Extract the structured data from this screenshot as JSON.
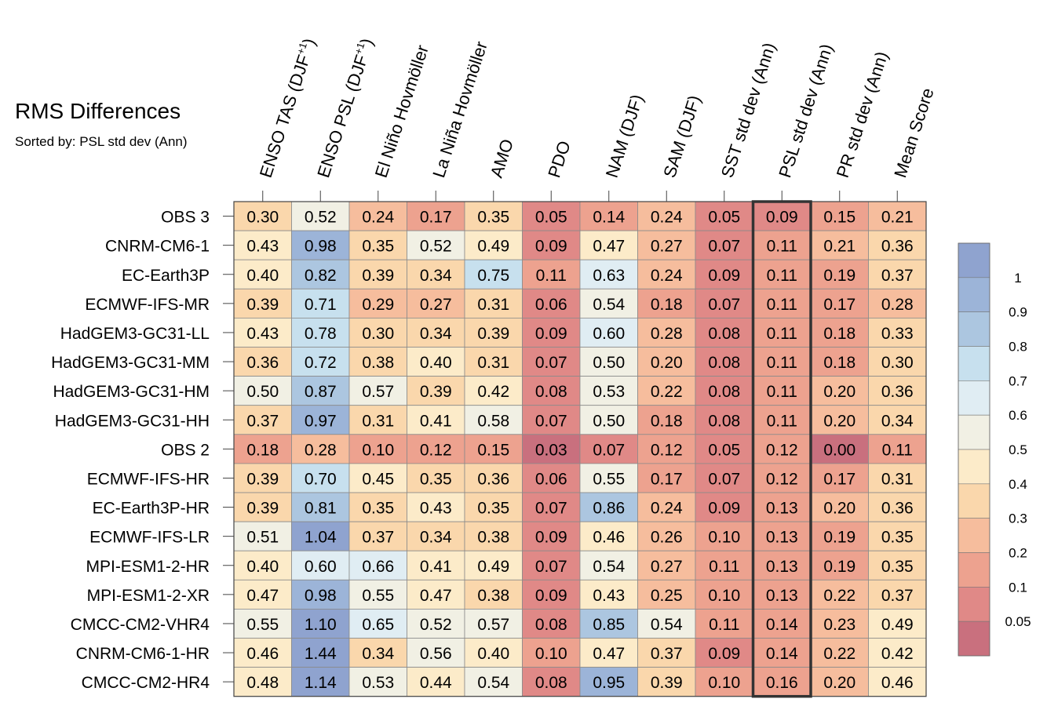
{
  "chart_data": {
    "type": "heatmap",
    "title": "RMS Differences",
    "subtitle": "Sorted by: PSL std dev (Ann)",
    "columns": [
      {
        "label": "ENSO TAS (DJF",
        "sup": "+1",
        "close": ")"
      },
      {
        "label": "ENSO PSL (DJF",
        "sup": "+1",
        "close": ")"
      },
      {
        "label": "El Niño Hovmöller",
        "sup": "",
        "close": ""
      },
      {
        "label": "La Niña Hovmöller",
        "sup": "",
        "close": ""
      },
      {
        "label": "AMO",
        "sup": "",
        "close": ""
      },
      {
        "label": "PDO",
        "sup": "",
        "close": ""
      },
      {
        "label": "NAM (DJF)",
        "sup": "",
        "close": ""
      },
      {
        "label": "SAM (DJF)",
        "sup": "",
        "close": ""
      },
      {
        "label": "SST std dev (Ann)",
        "sup": "",
        "close": ""
      },
      {
        "label": "PSL std dev (Ann)",
        "sup": "",
        "close": ""
      },
      {
        "label": "PR std dev (Ann)",
        "sup": "",
        "close": ""
      },
      {
        "label": "Mean Score",
        "sup": "",
        "close": ""
      }
    ],
    "rows": [
      "OBS 3",
      "CNRM-CM6-1",
      "EC-Earth3P",
      "ECMWF-IFS-MR",
      "HadGEM3-GC31-LL",
      "HadGEM3-GC31-MM",
      "HadGEM3-GC31-HM",
      "HadGEM3-GC31-HH",
      "OBS 2",
      "ECMWF-IFS-HR",
      "EC-Earth3P-HR",
      "ECMWF-IFS-LR",
      "MPI-ESM1-2-HR",
      "MPI-ESM1-2-XR",
      "CMCC-CM2-VHR4",
      "CNRM-CM6-1-HR",
      "CMCC-CM2-HR4"
    ],
    "values": [
      [
        "0.30",
        "0.52",
        "0.24",
        "0.17",
        "0.35",
        "0.05",
        "0.14",
        "0.24",
        "0.05",
        "0.09",
        "0.15",
        "0.21"
      ],
      [
        "0.43",
        "0.98",
        "0.35",
        "0.52",
        "0.49",
        "0.09",
        "0.47",
        "0.27",
        "0.07",
        "0.11",
        "0.21",
        "0.36"
      ],
      [
        "0.40",
        "0.82",
        "0.39",
        "0.34",
        "0.75",
        "0.11",
        "0.63",
        "0.24",
        "0.09",
        "0.11",
        "0.19",
        "0.37"
      ],
      [
        "0.39",
        "0.71",
        "0.29",
        "0.27",
        "0.31",
        "0.06",
        "0.54",
        "0.18",
        "0.07",
        "0.11",
        "0.17",
        "0.28"
      ],
      [
        "0.43",
        "0.78",
        "0.30",
        "0.34",
        "0.39",
        "0.09",
        "0.60",
        "0.28",
        "0.08",
        "0.11",
        "0.18",
        "0.33"
      ],
      [
        "0.36",
        "0.72",
        "0.38",
        "0.40",
        "0.31",
        "0.07",
        "0.50",
        "0.20",
        "0.08",
        "0.11",
        "0.18",
        "0.30"
      ],
      [
        "0.50",
        "0.87",
        "0.57",
        "0.39",
        "0.42",
        "0.08",
        "0.53",
        "0.22",
        "0.08",
        "0.11",
        "0.20",
        "0.36"
      ],
      [
        "0.37",
        "0.97",
        "0.31",
        "0.41",
        "0.58",
        "0.07",
        "0.50",
        "0.18",
        "0.08",
        "0.11",
        "0.20",
        "0.34"
      ],
      [
        "0.18",
        "0.28",
        "0.10",
        "0.12",
        "0.15",
        "0.03",
        "0.07",
        "0.12",
        "0.05",
        "0.12",
        "0.00",
        "0.11"
      ],
      [
        "0.39",
        "0.70",
        "0.45",
        "0.35",
        "0.36",
        "0.06",
        "0.55",
        "0.17",
        "0.07",
        "0.12",
        "0.17",
        "0.31"
      ],
      [
        "0.39",
        "0.81",
        "0.35",
        "0.43",
        "0.35",
        "0.07",
        "0.86",
        "0.24",
        "0.09",
        "0.13",
        "0.20",
        "0.36"
      ],
      [
        "0.51",
        "1.04",
        "0.37",
        "0.34",
        "0.38",
        "0.09",
        "0.46",
        "0.26",
        "0.10",
        "0.13",
        "0.19",
        "0.35"
      ],
      [
        "0.40",
        "0.60",
        "0.66",
        "0.41",
        "0.49",
        "0.07",
        "0.54",
        "0.27",
        "0.11",
        "0.13",
        "0.19",
        "0.35"
      ],
      [
        "0.47",
        "0.98",
        "0.55",
        "0.47",
        "0.38",
        "0.09",
        "0.43",
        "0.25",
        "0.10",
        "0.13",
        "0.22",
        "0.37"
      ],
      [
        "0.55",
        "1.10",
        "0.65",
        "0.52",
        "0.57",
        "0.08",
        "0.85",
        "0.54",
        "0.11",
        "0.14",
        "0.23",
        "0.49"
      ],
      [
        "0.46",
        "1.44",
        "0.34",
        "0.56",
        "0.40",
        "0.10",
        "0.47",
        "0.37",
        "0.09",
        "0.14",
        "0.22",
        "0.42"
      ],
      [
        "0.48",
        "1.14",
        "0.53",
        "0.44",
        "0.54",
        "0.08",
        "0.95",
        "0.39",
        "0.10",
        "0.16",
        "0.20",
        "0.46"
      ]
    ],
    "highlighted_column": 9,
    "colorbar": {
      "tick_labels": [
        "1",
        "0.9",
        "0.8",
        "0.7",
        "0.6",
        "0.5",
        "0.4",
        "0.3",
        "0.2",
        "0.1",
        "0.05"
      ],
      "levels": [
        0.05,
        0.1,
        0.2,
        0.3,
        0.4,
        0.5,
        0.6,
        0.7,
        0.8,
        0.9,
        1.0
      ],
      "colors": [
        "#c9707e",
        "#e08987",
        "#eda28f",
        "#f6bd9d",
        "#fad7ac",
        "#fcebc9",
        "#f1f0e4",
        "#e0edf3",
        "#c7e0ee",
        "#acc6e0",
        "#9cb4d8",
        "#8fa3cf"
      ]
    }
  }
}
